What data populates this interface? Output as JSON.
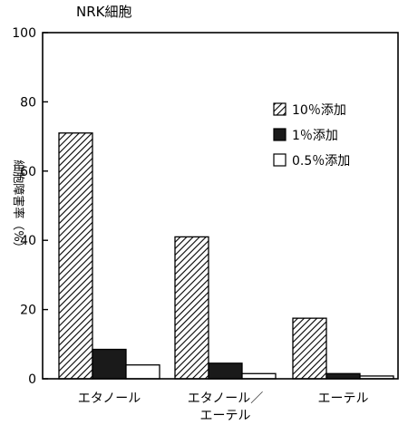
{
  "chart_data": {
    "type": "bar",
    "title": "NRK細胞",
    "ylabel": "細胞障害率（%）",
    "xlabel": "",
    "ylim": [
      0,
      100
    ],
    "yticks": [
      0,
      20,
      40,
      60,
      80,
      100
    ],
    "categories": [
      [
        "エタノール"
      ],
      [
        "エタノール／",
        "エーテル"
      ],
      [
        "エーテル"
      ]
    ],
    "series": [
      {
        "name": "10％添加",
        "values": [
          71,
          41,
          17.5
        ],
        "fill": "hatch"
      },
      {
        "name": "1％添加",
        "values": [
          8.5,
          4.5,
          1.5
        ],
        "fill": "#1a1a1a"
      },
      {
        "name": "0.5％添加",
        "values": [
          4,
          1.5,
          0.8
        ],
        "fill": "#ffffff"
      }
    ],
    "legend_position": "top-right",
    "grid": false
  }
}
